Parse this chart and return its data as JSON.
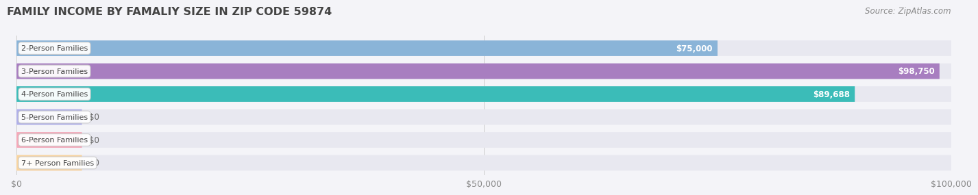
{
  "title": "FAMILY INCOME BY FAMALIY SIZE IN ZIP CODE 59874",
  "source": "Source: ZipAtlas.com",
  "categories": [
    "2-Person Families",
    "3-Person Families",
    "4-Person Families",
    "5-Person Families",
    "6-Person Families",
    "7+ Person Families"
  ],
  "values": [
    75000,
    98750,
    89688,
    0,
    0,
    0
  ],
  "bar_colors": [
    "#8ab4d8",
    "#a87ec0",
    "#3bbcb8",
    "#b0b0e8",
    "#f4a8b8",
    "#f8d4a0"
  ],
  "zero_bar_colors": [
    "#b8b8e8",
    "#f4a8b8",
    "#f8d4a0"
  ],
  "value_labels": [
    "$75,000",
    "$98,750",
    "$89,688",
    "$0",
    "$0",
    "$0"
  ],
  "xlim": [
    0,
    100000
  ],
  "xticks": [
    0,
    50000,
    100000
  ],
  "xticklabels": [
    "$0",
    "$50,000",
    "$100,000"
  ],
  "background_color": "#f4f4f8",
  "bar_bg_color": "#e8e8f0",
  "bar_bg_color2": "#ebebf2",
  "title_color": "#444444",
  "source_color": "#888888",
  "label_text_color": "#444444",
  "value_text_color_inside": "#ffffff",
  "value_text_color_outside": "#666666",
  "zero_bar_width": 7000,
  "label_pill_border_colors": [
    "#8ab4d8",
    "#a87ec0",
    "#3bbcb8",
    "#b0b0e8",
    "#f4a8b8",
    "#f8d4a0"
  ]
}
